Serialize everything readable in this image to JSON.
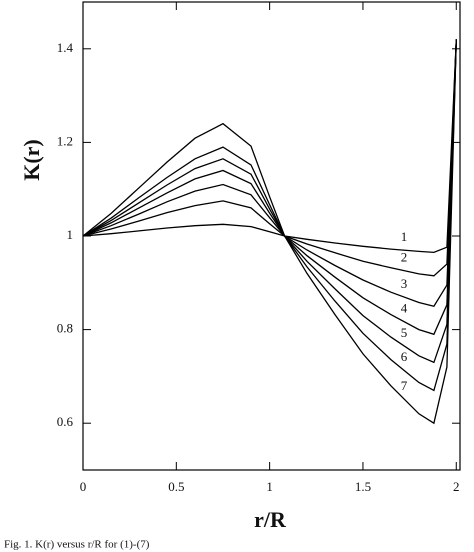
{
  "chart_data": {
    "type": "line",
    "ylabel": "K(r)",
    "xlabel": "r/R",
    "caption": "Fig. 1. K(r) versus r/R for (1)-(7)",
    "x": [
      0,
      0.15,
      0.3,
      0.45,
      0.6,
      0.75,
      0.9,
      1.0,
      1.08,
      1.2,
      1.35,
      1.5,
      1.65,
      1.8,
      1.88,
      1.95,
      2.0
    ],
    "series": [
      {
        "name": "1",
        "color": "#000000",
        "values": [
          1,
          1.005,
          1.011,
          1.017,
          1.022,
          1.025,
          1.02,
          1.009,
          1,
          0.993,
          0.985,
          0.978,
          0.972,
          0.967,
          0.965,
          0.976,
          1.42
        ]
      },
      {
        "name": "2",
        "color": "#000000",
        "values": [
          1,
          1.015,
          1.032,
          1.05,
          1.065,
          1.075,
          1.06,
          1.026,
          1,
          0.983,
          0.964,
          0.946,
          0.932,
          0.919,
          0.915,
          0.94,
          1.42
        ]
      },
      {
        "name": "3",
        "color": "#000000",
        "values": [
          1,
          1.022,
          1.047,
          1.073,
          1.096,
          1.11,
          1.088,
          1.039,
          1,
          0.97,
          0.937,
          0.906,
          0.88,
          0.858,
          0.85,
          0.895,
          1.42
        ]
      },
      {
        "name": "4",
        "color": "#000000",
        "values": [
          1,
          1.028,
          1.06,
          1.092,
          1.122,
          1.14,
          1.112,
          1.049,
          1,
          0.958,
          0.912,
          0.868,
          0.832,
          0.8,
          0.79,
          0.853,
          1.42
        ]
      },
      {
        "name": "5",
        "color": "#000000",
        "values": [
          1,
          1.033,
          1.071,
          1.109,
          1.144,
          1.165,
          1.132,
          1.058,
          1,
          0.946,
          0.887,
          0.83,
          0.784,
          0.744,
          0.73,
          0.811,
          1.42
        ]
      },
      {
        "name": "6",
        "color": "#000000",
        "values": [
          1,
          1.038,
          1.082,
          1.125,
          1.165,
          1.19,
          1.152,
          1.067,
          1,
          0.934,
          0.861,
          0.792,
          0.736,
          0.687,
          0.67,
          0.769,
          1.42
        ]
      },
      {
        "name": "7",
        "color": "#000000",
        "values": [
          1,
          1.048,
          1.103,
          1.158,
          1.209,
          1.24,
          1.192,
          1.084,
          1,
          0.92,
          0.832,
          0.748,
          0.68,
          0.62,
          0.6,
          0.72,
          1.42
        ]
      }
    ],
    "xlim": [
      0,
      2.02
    ],
    "ylim": [
      0.5,
      1.5
    ],
    "xticks": [
      0,
      0.5,
      1,
      1.5,
      2
    ],
    "yticks": [
      0.6,
      0.8,
      1,
      1.2,
      1.4
    ],
    "grid": false
  }
}
